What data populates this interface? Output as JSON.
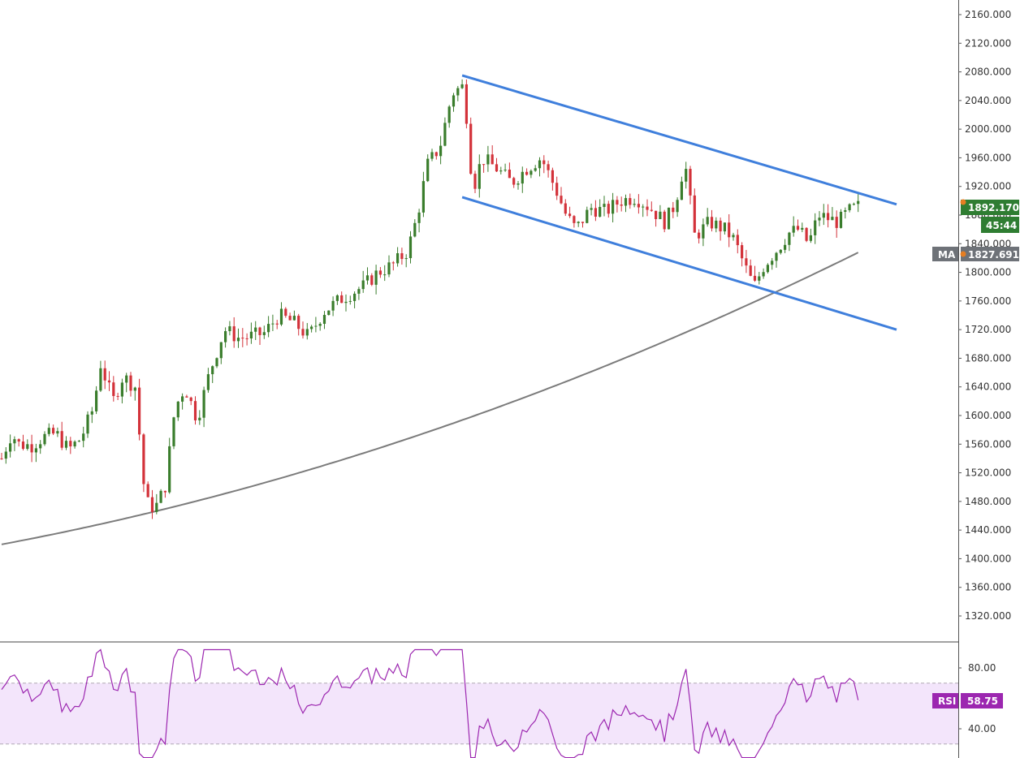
{
  "chart_data": [
    {
      "type": "candlestick",
      "title": "",
      "y_axis_ticks": [
        "2160.000",
        "2120.000",
        "2080.000",
        "2040.000",
        "2000.000",
        "1960.000",
        "1920.000",
        "1880.000",
        "1840.000",
        "1800.000",
        "1760.000",
        "1720.000",
        "1680.000",
        "1640.000",
        "1600.000",
        "1560.000",
        "1520.000",
        "1480.000",
        "1440.000",
        "1400.000",
        "1360.000",
        "1320.000"
      ],
      "ylim": [
        1290,
        2178
      ],
      "price_label": "1892.170",
      "countdown_label": "45:44",
      "ma_label": "MA",
      "ma_value": "1827.691",
      "colors": {
        "up": "#3a7d2c",
        "down": "#d3323a",
        "channel": "#3f7fdc",
        "ma": "#7b7b7b",
        "price_badge": "#2f7d32",
        "ma_badge": "#6e7278"
      },
      "key_levels": {
        "start_close": 1540,
        "crash_low": 1452,
        "peak_high": 2075,
        "channel_top_start": 2075,
        "channel_top_end": 1895,
        "channel_bottom_start": 1905,
        "channel_bottom_end": 1720,
        "dip_low": 1765,
        "last_close": 1892.17,
        "ma_start": 1420,
        "ma_end": 1827.691
      }
    },
    {
      "type": "line",
      "series": [
        {
          "name": "RSI",
          "last_value": "58.75"
        }
      ],
      "y_axis_ticks": [
        "80.00",
        "40.00"
      ],
      "ylim": [
        10,
        106
      ],
      "band": [
        30,
        70
      ],
      "colors": {
        "line": "#9c27b0",
        "band": "#f3e5fb",
        "badge": "#9c27b0"
      },
      "key_levels": {
        "peak": 92,
        "lows": [
          21,
          20
        ]
      }
    }
  ]
}
